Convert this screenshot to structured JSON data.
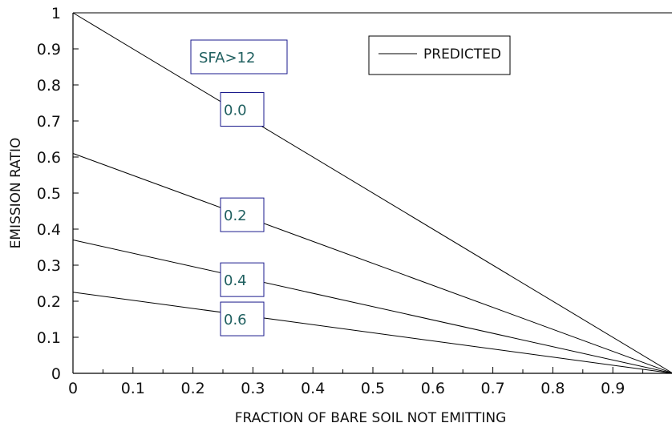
{
  "chart_data": {
    "type": "line",
    "title": "",
    "xlabel": "FRACTION OF BARE SOIL NOT EMITTING",
    "ylabel": "EMISSION RATIO",
    "xlim": [
      0,
      1
    ],
    "ylim": [
      0,
      1
    ],
    "x_ticks": [
      "0",
      "0.1",
      "0.2",
      "0.3",
      "0.4",
      "0.5",
      "0.6",
      "0.7",
      "0.8",
      "0.9"
    ],
    "y_ticks": [
      "0",
      "0.1",
      "0.2",
      "0.3",
      "0.4",
      "0.5",
      "0.6",
      "0.7",
      "0.8",
      "0.9",
      "1"
    ],
    "grid": false,
    "legend": {
      "label": "PREDICTED",
      "position": "top-right"
    },
    "header_box": "SFA>12",
    "series": [
      {
        "label": "0.0",
        "x": [
          0,
          1
        ],
        "y": [
          1.0,
          0.0
        ]
      },
      {
        "label": "0.2",
        "x": [
          0,
          1
        ],
        "y": [
          0.61,
          0.0
        ]
      },
      {
        "label": "0.4",
        "x": [
          0,
          1
        ],
        "y": [
          0.37,
          0.0
        ]
      },
      {
        "label": "0.6",
        "x": [
          0,
          1
        ],
        "y": [
          0.225,
          0.0
        ]
      }
    ],
    "label_box_x": 0.25
  },
  "colors": {
    "line": "#000000",
    "box_border": "#1a1a8c",
    "box_text": "#1f5f5f",
    "axis": "#000000"
  }
}
